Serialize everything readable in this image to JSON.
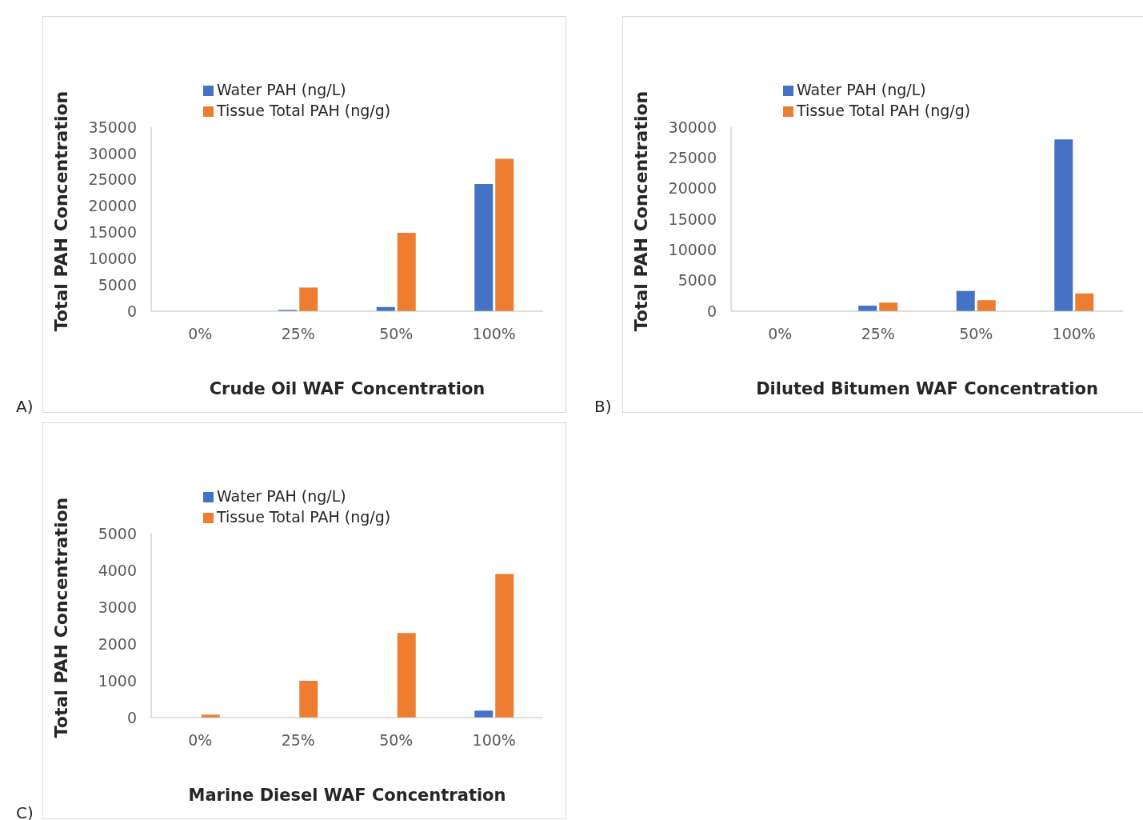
{
  "chart_data": [
    {
      "type": "bar",
      "xlabel": "Crude Oil WAF Concentration",
      "ylabel": "Total PAH Concentration",
      "annotations": [
        "A)"
      ],
      "categories": [
        "0%",
        "25%",
        "50%",
        "100%"
      ],
      "series": [
        {
          "name": "Water PAH (ng/L)",
          "color": "#4472c4",
          "values": [
            0,
            250,
            800,
            24200
          ]
        },
        {
          "name": "Tissue Total PAH (ng/g)",
          "color": "#ed7d31",
          "values": [
            0,
            4500,
            14900,
            29000
          ]
        }
      ],
      "ylim": [
        0,
        35000
      ],
      "yticks": [
        0,
        5000,
        10000,
        15000,
        20000,
        25000,
        30000,
        35000
      ],
      "grid": false,
      "legend": "top left"
    },
    {
      "type": "bar",
      "xlabel": "Diluted Bitumen WAF Concentration",
      "ylabel": "Total PAH Concentration",
      "annotations": [
        "B)"
      ],
      "categories": [
        "0%",
        "25%",
        "50%",
        "100%"
      ],
      "series": [
        {
          "name": "Water PAH (ng/L)",
          "color": "#4472c4",
          "values": [
            0,
            900,
            3300,
            28000
          ]
        },
        {
          "name": "Tissue Total PAH (ng/g)",
          "color": "#ed7d31",
          "values": [
            0,
            1400,
            1800,
            2900
          ]
        }
      ],
      "ylim": [
        0,
        30000
      ],
      "yticks": [
        0,
        5000,
        10000,
        15000,
        20000,
        25000,
        30000
      ],
      "grid": false,
      "legend": "top left"
    },
    {
      "type": "bar",
      "xlabel": "Marine Diesel WAF Concentration",
      "ylabel": "Total PAH Concentration",
      "annotations": [
        "C)"
      ],
      "categories": [
        "0%",
        "25%",
        "50%",
        "100%"
      ],
      "series": [
        {
          "name": "Water PAH (ng/L)",
          "color": "#4472c4",
          "values": [
            0,
            0,
            0,
            190
          ]
        },
        {
          "name": "Tissue Total PAH (ng/g)",
          "color": "#ed7d31",
          "values": [
            80,
            1000,
            2300,
            3900
          ]
        }
      ],
      "ylim": [
        0,
        5000
      ],
      "yticks": [
        0,
        1000,
        2000,
        3000,
        4000,
        5000
      ],
      "grid": false,
      "legend": "top left"
    }
  ]
}
